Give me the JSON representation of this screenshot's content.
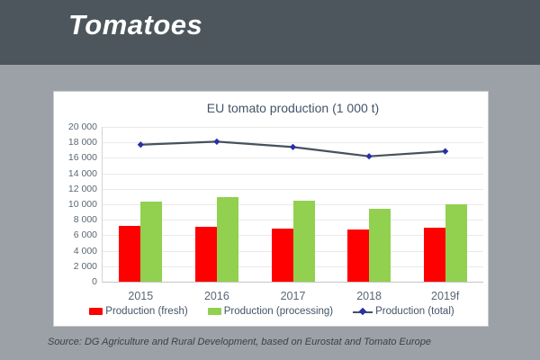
{
  "header": {
    "title": "Tomatoes",
    "band_color": "#4C565C",
    "title_color": "#FFFFFF"
  },
  "page": {
    "background_color": "#9BA1A6",
    "panel_color": "#FFFFFF"
  },
  "source": {
    "text": "Source: DG Agriculture and Rural Development, based on Eurostat and Tomato Europe"
  },
  "chart_data": {
    "type": "bar",
    "title": "EU tomato production (1 000 t)",
    "categories": [
      "2015",
      "2016",
      "2017",
      "2018",
      "2019f"
    ],
    "series": [
      {
        "name": "Production (fresh)",
        "type": "bar",
        "color": "#FF0000",
        "values": [
          7250,
          7100,
          6900,
          6800,
          6950
        ]
      },
      {
        "name": "Production (processing)",
        "type": "bar",
        "color": "#92D050",
        "values": [
          10400,
          10900,
          10500,
          9450,
          10000
        ]
      },
      {
        "name": "Production (total)",
        "type": "line",
        "color": "#47525C",
        "marker": "diamond",
        "marker_color": "#2A2FA8",
        "values": [
          17700,
          18100,
          17400,
          16200,
          16850
        ]
      }
    ],
    "xlabel": "",
    "ylabel": "",
    "ylim": [
      0,
      20000
    ],
    "ytick_step": 2000,
    "grid": "horizontal",
    "legend_position": "bottom",
    "gridline_color": "#E9E9E9",
    "tick_label_color": "#5A6774",
    "title_color": "#44546A"
  }
}
